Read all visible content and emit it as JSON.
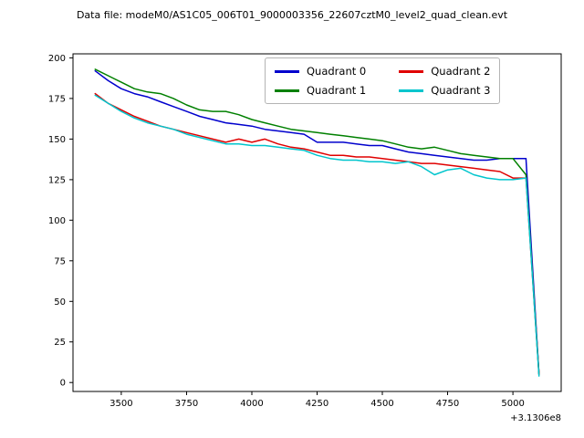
{
  "chart_data": {
    "type": "line",
    "title": "Data file: modeM0/AS1C05_006T01_9000003356_22607cztM0_level2_quad_clean.evt",
    "xlabel": "",
    "ylabel": "",
    "x_offset_label": "+3.1306e8",
    "xlim": [
      3315,
      5185
    ],
    "ylim": [
      -5.5,
      202.5
    ],
    "xticks": [
      3500,
      3750,
      4000,
      4250,
      4500,
      4750,
      5000
    ],
    "yticks": [
      0,
      25,
      50,
      75,
      100,
      125,
      150,
      175,
      200
    ],
    "grid": false,
    "legend_position": "upper center",
    "legend_columns": 2,
    "x": [
      3400,
      3450,
      3500,
      3550,
      3600,
      3650,
      3700,
      3750,
      3800,
      3850,
      3900,
      3950,
      4000,
      4050,
      4100,
      4150,
      4200,
      4250,
      4300,
      4350,
      4400,
      4450,
      4500,
      4550,
      4600,
      4650,
      4700,
      4750,
      4800,
      4850,
      4900,
      4950,
      5000,
      5050,
      5100
    ],
    "series": [
      {
        "name": "Quadrant 0",
        "color": "#0000cd",
        "values": [
          192,
          186,
          181,
          178,
          176,
          173,
          170,
          167,
          164,
          162,
          160,
          159,
          158,
          156,
          155,
          154,
          153,
          148,
          148,
          148,
          147,
          146,
          146,
          144,
          142,
          141,
          140,
          139,
          138,
          137,
          137,
          138,
          138,
          138,
          5
        ]
      },
      {
        "name": "Quadrant 1",
        "color": "#008000",
        "values": [
          193,
          189,
          185,
          181,
          179,
          178,
          175,
          171,
          168,
          167,
          167,
          165,
          162,
          160,
          158,
          156,
          155,
          154,
          153,
          152,
          151,
          150,
          149,
          147,
          145,
          144,
          145,
          143,
          141,
          140,
          139,
          138,
          138,
          128,
          5
        ]
      },
      {
        "name": "Quadrant 2",
        "color": "#e00000",
        "values": [
          178,
          172,
          168,
          164,
          161,
          158,
          156,
          154,
          152,
          150,
          148,
          150,
          148,
          150,
          147,
          145,
          144,
          142,
          140,
          140,
          139,
          139,
          138,
          137,
          136,
          135,
          135,
          134,
          133,
          132,
          131,
          130,
          126,
          126,
          5
        ]
      },
      {
        "name": "Quadrant 3",
        "color": "#00c5cd",
        "values": [
          177,
          172,
          167,
          163,
          160,
          158,
          156,
          153,
          151,
          149,
          147,
          147,
          146,
          146,
          145,
          144,
          143,
          140,
          138,
          137,
          137,
          136,
          136,
          135,
          136,
          133,
          128,
          131,
          132,
          128,
          126,
          125,
          125,
          126,
          4
        ]
      }
    ]
  }
}
